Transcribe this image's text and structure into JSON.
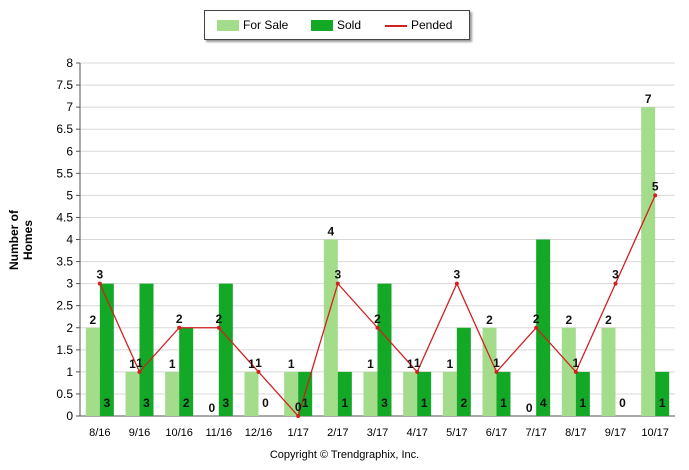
{
  "legend": {
    "for_sale": "For Sale",
    "sold": "Sold",
    "pended": "Pended"
  },
  "copyright": "Copyright © Trendgraphix, Inc.",
  "colors": {
    "for_sale": "#a3dc8b",
    "sold": "#13a825",
    "pended": "#d21f1f",
    "grid": "#d8d8d8"
  },
  "chart_data": {
    "type": "bar",
    "title": "",
    "xlabel": "",
    "ylabel": "Number of Homes",
    "ylim": [
      0,
      8
    ],
    "yticks": [
      "0",
      "0.5",
      "1",
      "1.5",
      "2",
      "2.5",
      "3",
      "3.5",
      "4",
      "4.5",
      "5",
      "5.5",
      "6",
      "6.5",
      "7",
      "7.5",
      "8"
    ],
    "grid": true,
    "legend_position": "top-center",
    "categories": [
      "8/16",
      "9/16",
      "10/16",
      "11/16",
      "12/16",
      "1/17",
      "2/17",
      "3/17",
      "4/17",
      "5/17",
      "6/17",
      "7/17",
      "8/17",
      "9/17",
      "10/17"
    ],
    "series": [
      {
        "name": "For Sale",
        "type": "bar",
        "values": [
          2,
          1,
          1,
          0,
          1,
          1,
          4,
          1,
          1,
          1,
          2,
          0,
          2,
          2,
          7
        ]
      },
      {
        "name": "Sold",
        "type": "bar",
        "values": [
          3,
          3,
          2,
          3,
          0,
          1,
          1,
          3,
          1,
          2,
          1,
          4,
          1,
          0,
          1
        ]
      },
      {
        "name": "Pended",
        "type": "line",
        "values": [
          3,
          1,
          2,
          2,
          1,
          0,
          3,
          2,
          1,
          3,
          1,
          2,
          1,
          3,
          5
        ]
      }
    ]
  }
}
